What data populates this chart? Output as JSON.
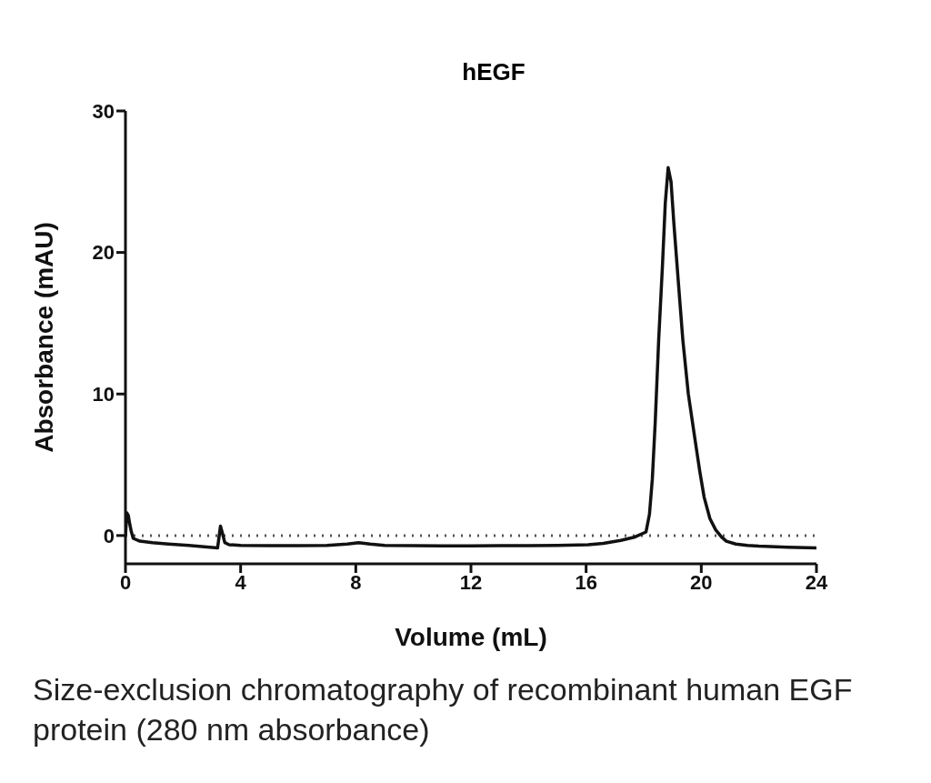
{
  "chart_data": {
    "type": "line",
    "title": "hEGF",
    "xlabel": "Volume (mL)",
    "ylabel": "Absorbance (mAU)",
    "annotations": [
      "Size-exclusion chromatography of recombinant human EGF protein  (280 nm absorbance)"
    ],
    "xlim": [
      0,
      24
    ],
    "xticks": [
      0,
      4,
      8,
      12,
      16,
      20,
      24
    ],
    "ylim": [
      -2,
      30
    ],
    "yticks": [
      0,
      10,
      20,
      30
    ],
    "grid": false,
    "legend": false,
    "marker": "none",
    "line_style": "solid",
    "ref_lines": [
      {
        "axis": "y",
        "value": 0,
        "color": "#555555",
        "line_style": "dotted"
      }
    ],
    "series": [
      {
        "color": "#111111",
        "x": [
          0,
          0.05,
          0.1,
          0.15,
          0.2,
          0.27,
          0.5,
          0.94,
          1.5,
          2.2,
          3.2,
          3.3,
          3.35,
          3.45,
          3.6,
          4,
          5,
          6,
          7,
          7.7,
          8.1,
          8.5,
          9,
          10,
          11,
          12,
          13,
          14,
          15,
          16.07,
          16.6,
          17.2,
          17.7,
          18.08,
          18.2,
          18.3,
          18.4,
          18.52,
          18.65,
          18.75,
          18.85,
          18.95,
          19.05,
          19.2,
          19.36,
          19.55,
          19.76,
          19.95,
          20.1,
          20.3,
          20.5,
          20.7,
          20.87,
          21.2,
          21.6,
          22,
          23,
          24
        ],
        "values": [
          0,
          1.6,
          1.4,
          0.8,
          0.3,
          -0.2,
          -0.4,
          -0.5,
          -0.6,
          -0.7,
          -0.87,
          0.67,
          0.3,
          -0.5,
          -0.65,
          -0.7,
          -0.72,
          -0.72,
          -0.7,
          -0.6,
          -0.5,
          -0.6,
          -0.7,
          -0.72,
          -0.73,
          -0.73,
          -0.72,
          -0.72,
          -0.7,
          -0.65,
          -0.55,
          -0.35,
          -0.1,
          0.25,
          1.5,
          4,
          8,
          13.8,
          19,
          23.5,
          26,
          25,
          22,
          18,
          13.8,
          10,
          7.1,
          4.5,
          2.7,
          1.2,
          0.4,
          -0.1,
          -0.4,
          -0.6,
          -0.7,
          -0.75,
          -0.82,
          -0.87
        ]
      }
    ]
  }
}
